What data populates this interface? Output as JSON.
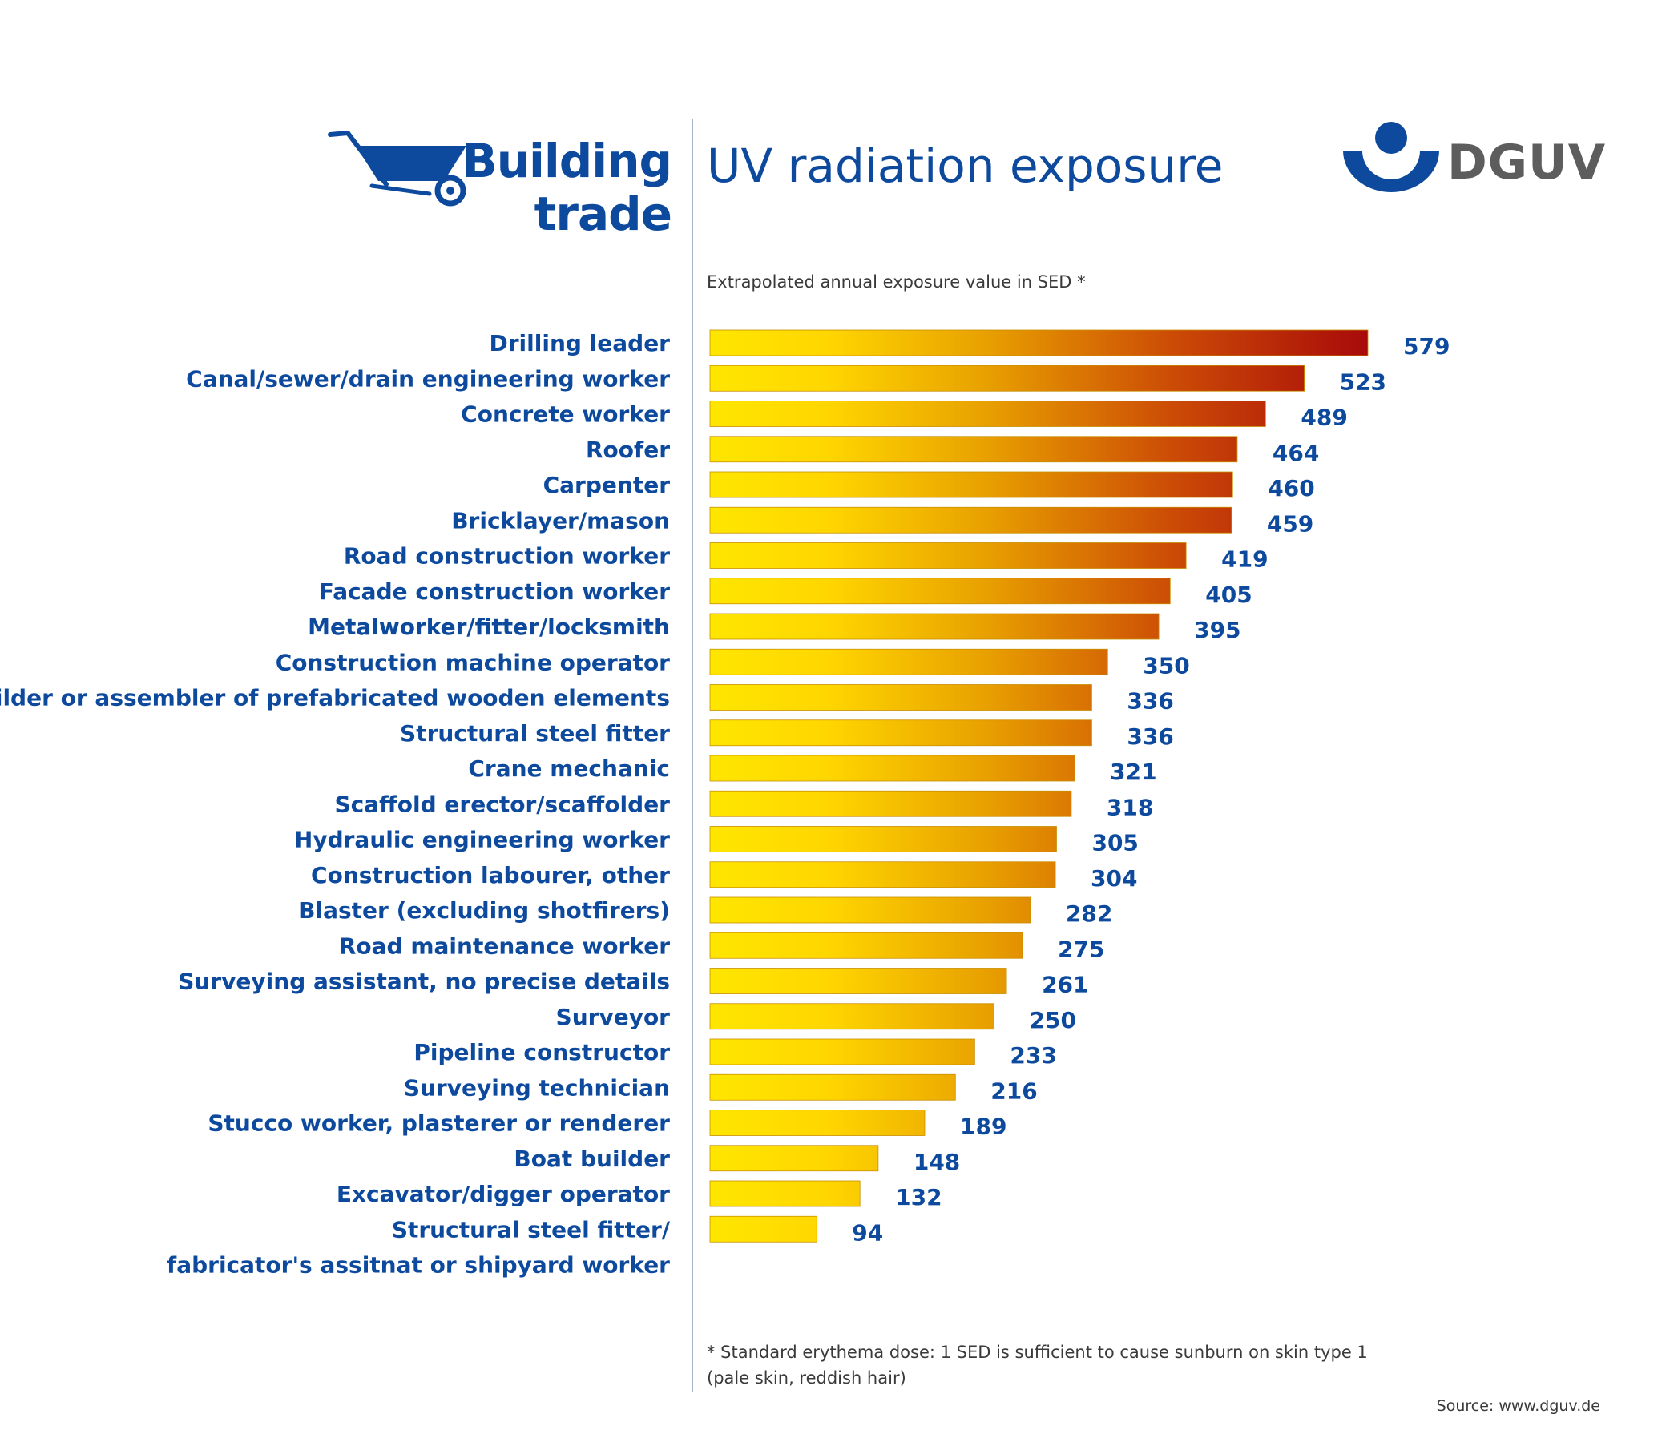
{
  "header": {
    "title_line1": "Building",
    "title_line2": "trade",
    "icon": "wheelbarrow-icon"
  },
  "logo": {
    "text": "DGUV",
    "icon": "dguv-logo-icon"
  },
  "chart_title": "UV radiation exposure",
  "footnote": {
    "line1": "* Standard erythema dose: 1 SED is sufficient to cause sunburn on skin type 1",
    "line2": "(pale skin, reddish hair)"
  },
  "source": "Source: www.dguv.de",
  "colors": {
    "brand_blue": "#0d4a9e",
    "bar_start": "#ffdc00",
    "bar_mid": "#e9a200",
    "bar_end": "#a80a0a",
    "logo_gray": "#5d5d5d"
  },
  "chart_data": {
    "type": "bar",
    "orientation": "horizontal",
    "title": "UV radiation exposure",
    "subtitle": "Extrapolated annual exposure value in SED *",
    "categories": [
      "Drilling leader",
      "Canal/sewer/drain engineering worker",
      "Concrete worker",
      "Roofer",
      "Carpenter",
      "Bricklayer/mason",
      "Road construction worker",
      "Facade construction worker",
      "Metalworker/fitter/locksmith",
      "Construction machine operator",
      "Builder or assembler of prefabricated wooden elements",
      "Structural steel fitter",
      "Crane mechanic",
      "Scaffold erector/scaffolder",
      "Hydraulic engineering worker",
      "Construction labourer, other",
      "Blaster (excluding shotfirers)",
      "Road maintenance worker",
      "Surveying assistant, no precise details",
      "Surveyor",
      "Pipeline constructor",
      "Surveying technician",
      "Stucco worker, plasterer or renderer",
      "Boat builder",
      "Excavator/digger operator",
      [
        "Structural steel fitter/",
        "fabricator's assitnat or shipyard worker"
      ]
    ],
    "values": [
      579,
      523,
      489,
      464,
      460,
      459,
      419,
      405,
      395,
      350,
      336,
      336,
      321,
      318,
      305,
      304,
      282,
      275,
      261,
      250,
      233,
      216,
      189,
      148,
      132,
      94
    ],
    "xlim": [
      0,
      579
    ],
    "grid": false,
    "legend": "none",
    "data_labels": true
  }
}
